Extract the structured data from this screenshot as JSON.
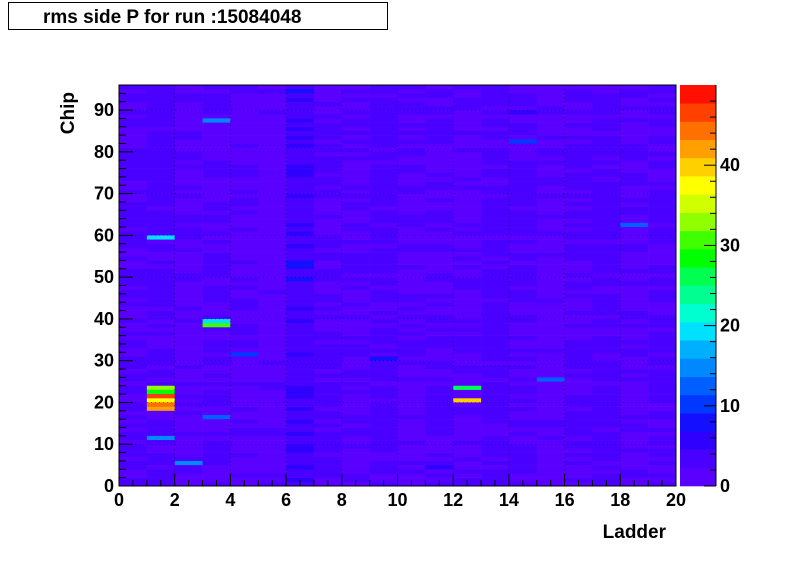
{
  "chart_data": {
    "type": "heatmap",
    "title": "rms side P for run :15084048",
    "xlabel": "Ladder",
    "ylabel": "Chip",
    "xlim": [
      0,
      20
    ],
    "ylim": [
      0,
      96
    ],
    "x_ticks": [
      "0",
      "2",
      "4",
      "6",
      "8",
      "10",
      "12",
      "14",
      "16",
      "18",
      "20"
    ],
    "y_ticks": [
      "0",
      "10",
      "20",
      "30",
      "40",
      "50",
      "60",
      "70",
      "80",
      "90"
    ],
    "z_ticks": [
      "0",
      "10",
      "20",
      "30",
      "40"
    ],
    "zlim": [
      0,
      50
    ],
    "grid": true,
    "background_level": 2.5,
    "columns": [
      {
        "ladder": 0,
        "segments": [
          [
            0,
            96,
            2.5
          ]
        ]
      },
      {
        "ladder": 1,
        "segments": [
          [
            0,
            96,
            3
          ]
        ]
      },
      {
        "ladder": 2,
        "segments": [
          [
            0,
            96,
            2
          ]
        ]
      },
      {
        "ladder": 3,
        "segments": [
          [
            0,
            96,
            2.5
          ]
        ]
      },
      {
        "ladder": 4,
        "segments": [
          [
            0,
            96,
            2
          ]
        ]
      },
      {
        "ladder": 5,
        "segments": [
          [
            0,
            96,
            1.5
          ],
          [
            68,
            82,
            0.8
          ]
        ]
      },
      {
        "ladder": 6,
        "segments": [
          [
            0,
            96,
            4
          ]
        ]
      },
      {
        "ladder": 7,
        "segments": [
          [
            0,
            96,
            2.5
          ]
        ]
      },
      {
        "ladder": 8,
        "segments": [
          [
            0,
            96,
            2
          ]
        ]
      },
      {
        "ladder": 9,
        "segments": [
          [
            0,
            96,
            3
          ]
        ]
      },
      {
        "ladder": 10,
        "segments": [
          [
            0,
            96,
            2
          ]
        ]
      },
      {
        "ladder": 11,
        "segments": [
          [
            0,
            96,
            2.5
          ]
        ]
      },
      {
        "ladder": 12,
        "segments": [
          [
            0,
            96,
            2
          ]
        ]
      },
      {
        "ladder": 13,
        "segments": [
          [
            0,
            96,
            3
          ]
        ]
      },
      {
        "ladder": 14,
        "segments": [
          [
            0,
            96,
            2.5
          ]
        ]
      },
      {
        "ladder": 15,
        "segments": [
          [
            0,
            96,
            1.5
          ]
        ]
      },
      {
        "ladder": 16,
        "segments": [
          [
            0,
            96,
            2.5
          ]
        ]
      },
      {
        "ladder": 17,
        "segments": [
          [
            0,
            96,
            3
          ]
        ]
      },
      {
        "ladder": 18,
        "segments": [
          [
            0,
            96,
            2
          ]
        ]
      },
      {
        "ladder": 19,
        "segments": [
          [
            0,
            96,
            2.5
          ]
        ]
      }
    ],
    "hot_cells": [
      {
        "ladder": 1,
        "chip": 23,
        "value": 32
      },
      {
        "ladder": 1,
        "chip": 22,
        "value": 28
      },
      {
        "ladder": 1,
        "chip": 21,
        "value": 46
      },
      {
        "ladder": 1,
        "chip": 20,
        "value": 38
      },
      {
        "ladder": 1,
        "chip": 19,
        "value": 44
      },
      {
        "ladder": 1,
        "chip": 18,
        "value": 43
      },
      {
        "ladder": 1,
        "chip": 11,
        "value": 14
      },
      {
        "ladder": 1,
        "chip": 59,
        "value": 20
      },
      {
        "ladder": 2,
        "chip": 5,
        "value": 15
      },
      {
        "ladder": 3,
        "chip": 16,
        "value": 13
      },
      {
        "ladder": 3,
        "chip": 39,
        "value": 19
      },
      {
        "ladder": 3,
        "chip": 38,
        "value": 30
      },
      {
        "ladder": 3,
        "chip": 87,
        "value": 14
      },
      {
        "ladder": 4,
        "chip": 31,
        "value": 11
      },
      {
        "ladder": 6,
        "chip": 53,
        "value": 8
      },
      {
        "ladder": 6,
        "chip": 52,
        "value": 7
      },
      {
        "ladder": 6,
        "chip": 49,
        "value": 7
      },
      {
        "ladder": 6,
        "chip": 94,
        "value": 9
      },
      {
        "ladder": 9,
        "chip": 30,
        "value": 9
      },
      {
        "ladder": 12,
        "chip": 23,
        "value": 25
      },
      {
        "ladder": 12,
        "chip": 20,
        "value": 40
      },
      {
        "ladder": 14,
        "chip": 82,
        "value": 11
      },
      {
        "ladder": 14,
        "chip": 89,
        "value": 6
      },
      {
        "ladder": 15,
        "chip": 25,
        "value": 12
      },
      {
        "ladder": 18,
        "chip": 62,
        "value": 12
      },
      {
        "ladder": 6,
        "chip": 4,
        "value": 5
      },
      {
        "ladder": 11,
        "chip": 4,
        "value": 5
      }
    ]
  }
}
